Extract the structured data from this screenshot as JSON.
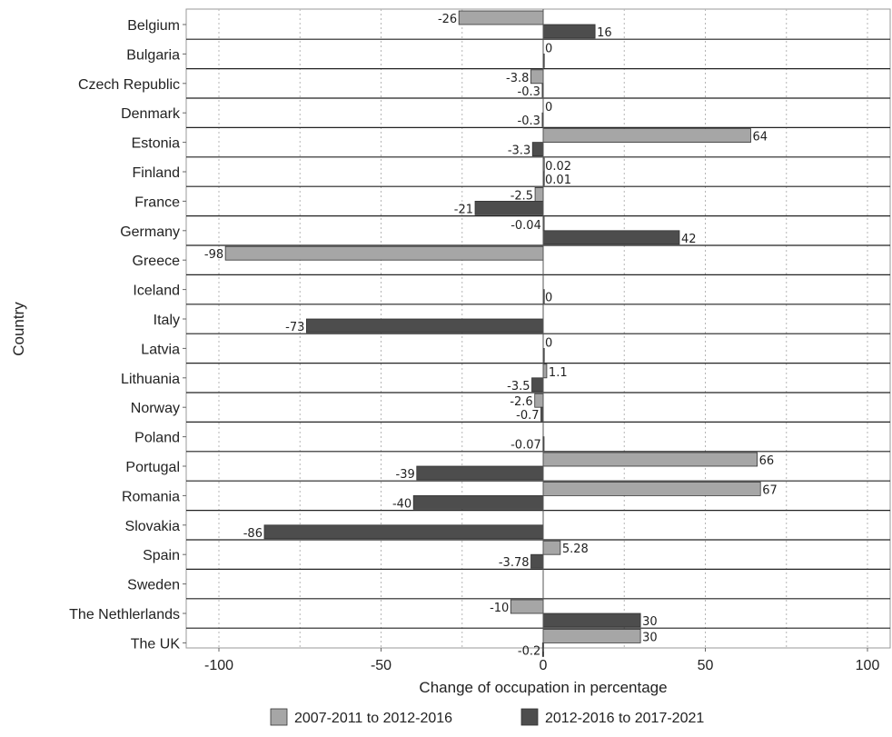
{
  "chart_data": {
    "type": "bar",
    "orientation": "horizontal",
    "categories": [
      "Belgium",
      "Bulgaria",
      "Czech Republic",
      "Denmark",
      "Estonia",
      "Finland",
      "France",
      "Germany",
      "Greece",
      "Iceland",
      "Italy",
      "Latvia",
      "Lithuania",
      "Norway",
      "Poland",
      "Portugal",
      "Romania",
      "Slovakia",
      "Spain",
      "Sweden",
      "The Nethlerlands",
      "The UK"
    ],
    "series": [
      {
        "name": "2007-2011 to 2012-2016",
        "color": "#a6a6a6",
        "values": [
          -26,
          null,
          -3.8,
          null,
          64,
          0.02,
          -2.5,
          -0.04,
          -98,
          null,
          null,
          null,
          1.1,
          -2.6,
          null,
          66,
          67,
          null,
          5.28,
          null,
          -10,
          30
        ],
        "labels": [
          "-26",
          "",
          "-3.8",
          "",
          "64",
          "0.02",
          "-2.5",
          "-0.04",
          "-98",
          "",
          "",
          "",
          "1.1",
          "-2.6",
          "",
          "66",
          "67",
          "",
          "5.28",
          "",
          "-10",
          "30"
        ]
      },
      {
        "name": "2012-2016 to 2017-2021",
        "color": "#4d4d4d",
        "values": [
          16,
          0,
          -0.3,
          -0.3,
          -3.3,
          0.01,
          -21,
          42,
          null,
          0,
          -73,
          0,
          -3.5,
          -0.7,
          -0.07,
          -39,
          -40,
          -86,
          -3.78,
          null,
          30,
          -0.2
        ],
        "labels": [
          "16",
          "",
          "-0.3",
          "-0.3",
          "-3.3",
          "0.01",
          "-21",
          "42",
          "",
          "0",
          "-73",
          "",
          "-3.5",
          "-0.7",
          "-0.07",
          "-39",
          "-40",
          "-86",
          "-3.78",
          "",
          "30",
          "-0.2"
        ]
      }
    ],
    "upper_zero_labels": [
      "",
      "0",
      "",
      "0",
      "",
      "",
      "",
      "",
      "",
      "",
      "",
      "0",
      "",
      "",
      "",
      "",
      "",
      "",
      "",
      "",
      "",
      ""
    ],
    "xlabel": "Change of occupation in percentage",
    "ylabel": "Country",
    "xlim": [
      -110,
      105
    ],
    "xticks": [
      -100,
      -50,
      0,
      50,
      100
    ],
    "xtick_labels": [
      "-100",
      "-50",
      "0",
      "50",
      "100"
    ],
    "grid": true,
    "legend_position": "bottom"
  }
}
